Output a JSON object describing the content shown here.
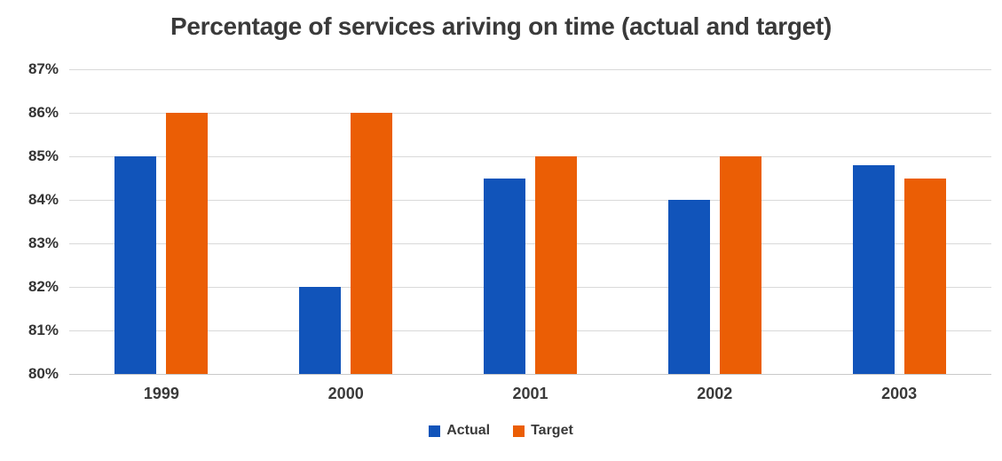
{
  "chart_data": {
    "type": "bar",
    "title": "Percentage of services ariving on time (actual and target)",
    "categories": [
      "1999",
      "2000",
      "2001",
      "2002",
      "2003"
    ],
    "series": [
      {
        "name": "Actual",
        "color": "#1154BA",
        "values": [
          85,
          82,
          84.5,
          84,
          84.8
        ]
      },
      {
        "name": "Target",
        "color": "#EB5E05",
        "values": [
          86,
          86,
          85,
          85,
          84.5
        ]
      }
    ],
    "xlabel": "",
    "ylabel": "",
    "ylim": [
      80,
      87
    ],
    "ytick_step": 1,
    "ytick_suffix": "%",
    "grid": true,
    "gridline_color": "#D9D9D9",
    "baseline_color": "#C9C9C9",
    "text_color": "#3A3A3A",
    "legend_position": "bottom"
  }
}
